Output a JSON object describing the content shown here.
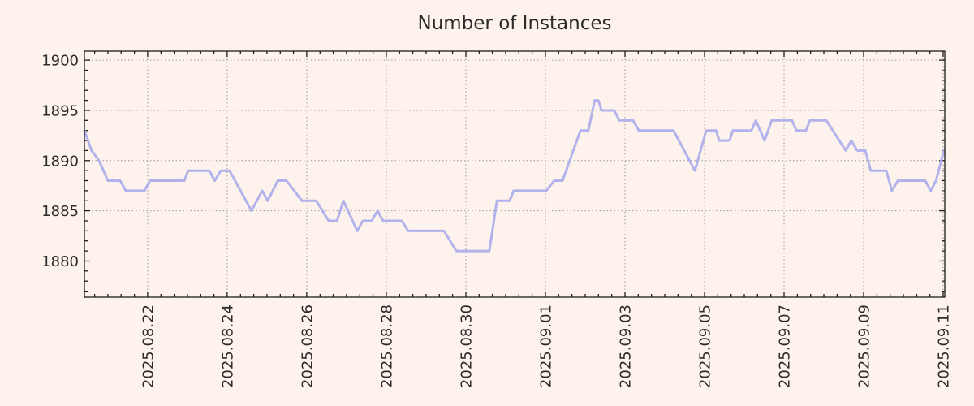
{
  "chart_data": {
    "type": "line",
    "title": "Number of Instances",
    "xlabel": "",
    "ylabel": "",
    "legend": "none",
    "grid": true,
    "x_unit": "days since 2025.08.20 00:00",
    "xlim": [
      0.41,
      22.04
    ],
    "ylim": [
      1876.4,
      1900.9
    ],
    "y_ticks": [
      1880,
      1885,
      1890,
      1895,
      1900
    ],
    "y_minor_step": 1,
    "x_minor_step_days": 0.33333,
    "x_ticks": [
      {
        "day": 2,
        "label": "2025.08.22"
      },
      {
        "day": 4,
        "label": "2025.08.24"
      },
      {
        "day": 6,
        "label": "2025.08.26"
      },
      {
        "day": 8,
        "label": "2025.08.28"
      },
      {
        "day": 10,
        "label": "2025.08.30"
      },
      {
        "day": 12,
        "label": "2025.09.01"
      },
      {
        "day": 14,
        "label": "2025.09.03"
      },
      {
        "day": 16,
        "label": "2025.09.05"
      },
      {
        "day": 18,
        "label": "2025.09.07"
      },
      {
        "day": 20,
        "label": "2025.09.09"
      },
      {
        "day": 22,
        "label": "2025.09.11"
      }
    ],
    "points": [
      [
        0.41,
        1893
      ],
      [
        0.59,
        1891
      ],
      [
        0.78,
        1890
      ],
      [
        1.0,
        1888
      ],
      [
        1.31,
        1888
      ],
      [
        1.45,
        1887
      ],
      [
        1.92,
        1887
      ],
      [
        2.06,
        1888
      ],
      [
        2.92,
        1888
      ],
      [
        3.02,
        1889
      ],
      [
        3.55,
        1889
      ],
      [
        3.69,
        1888
      ],
      [
        3.84,
        1889
      ],
      [
        4.06,
        1889
      ],
      [
        4.61,
        1885
      ],
      [
        4.88,
        1887
      ],
      [
        5.02,
        1886
      ],
      [
        5.27,
        1888
      ],
      [
        5.49,
        1888
      ],
      [
        5.88,
        1886
      ],
      [
        6.24,
        1886
      ],
      [
        6.55,
        1884
      ],
      [
        6.76,
        1884
      ],
      [
        6.92,
        1886
      ],
      [
        7.27,
        1883
      ],
      [
        7.41,
        1884
      ],
      [
        7.63,
        1884
      ],
      [
        7.78,
        1885
      ],
      [
        7.92,
        1884
      ],
      [
        8.39,
        1884
      ],
      [
        8.55,
        1883
      ],
      [
        9.45,
        1883
      ],
      [
        9.76,
        1881
      ],
      [
        10.59,
        1881
      ],
      [
        10.78,
        1886
      ],
      [
        11.1,
        1886
      ],
      [
        11.2,
        1887
      ],
      [
        12.02,
        1887
      ],
      [
        12.22,
        1888
      ],
      [
        12.43,
        1888
      ],
      [
        12.88,
        1893
      ],
      [
        13.08,
        1893
      ],
      [
        13.24,
        1896
      ],
      [
        13.33,
        1896
      ],
      [
        13.41,
        1895
      ],
      [
        13.73,
        1895
      ],
      [
        13.86,
        1894
      ],
      [
        14.2,
        1894
      ],
      [
        14.35,
        1893
      ],
      [
        15.22,
        1893
      ],
      [
        15.76,
        1889
      ],
      [
        16.04,
        1893
      ],
      [
        16.29,
        1893
      ],
      [
        16.37,
        1892
      ],
      [
        16.63,
        1892
      ],
      [
        16.71,
        1893
      ],
      [
        17.18,
        1893
      ],
      [
        17.29,
        1894
      ],
      [
        17.51,
        1892
      ],
      [
        17.69,
        1894
      ],
      [
        18.2,
        1894
      ],
      [
        18.31,
        1893
      ],
      [
        18.55,
        1893
      ],
      [
        18.65,
        1894
      ],
      [
        19.06,
        1894
      ],
      [
        19.55,
        1891
      ],
      [
        19.69,
        1892
      ],
      [
        19.84,
        1891
      ],
      [
        20.04,
        1891
      ],
      [
        20.18,
        1889
      ],
      [
        20.57,
        1889
      ],
      [
        20.71,
        1887
      ],
      [
        20.86,
        1888
      ],
      [
        21.55,
        1888
      ],
      [
        21.69,
        1887
      ],
      [
        21.82,
        1888
      ],
      [
        22.02,
        1891
      ]
    ],
    "colors": {
      "background": "#fdf3ec",
      "line": "#b2b2ec",
      "grid": "#9a9a9a",
      "axis": "#1c1c1c",
      "text": "#2b2b2b"
    }
  }
}
